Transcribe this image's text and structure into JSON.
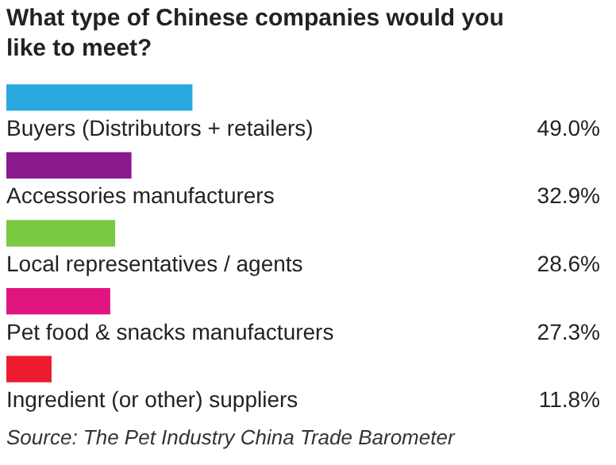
{
  "chart_data": {
    "type": "bar",
    "orientation": "horizontal",
    "title": "What type of Chinese companies would you like to meet?",
    "categories": [
      "Buyers (Distributors + retailers)",
      "Accessories manufacturers",
      "Local representatives / agents",
      "Pet food & snacks manufacturers",
      "Ingredient (or other) suppliers"
    ],
    "values": [
      49.0,
      32.9,
      28.6,
      27.3,
      11.8
    ],
    "colors": [
      "#29a8e0",
      "#8b1a8e",
      "#7ac943",
      "#e0157f",
      "#ee1b2e"
    ],
    "value_labels": [
      "49.0%",
      "32.9%",
      "28.6%",
      "27.3%",
      "11.8%"
    ],
    "annotations": [
      "Source: The Pet Industry China Trade Barometer"
    ]
  }
}
